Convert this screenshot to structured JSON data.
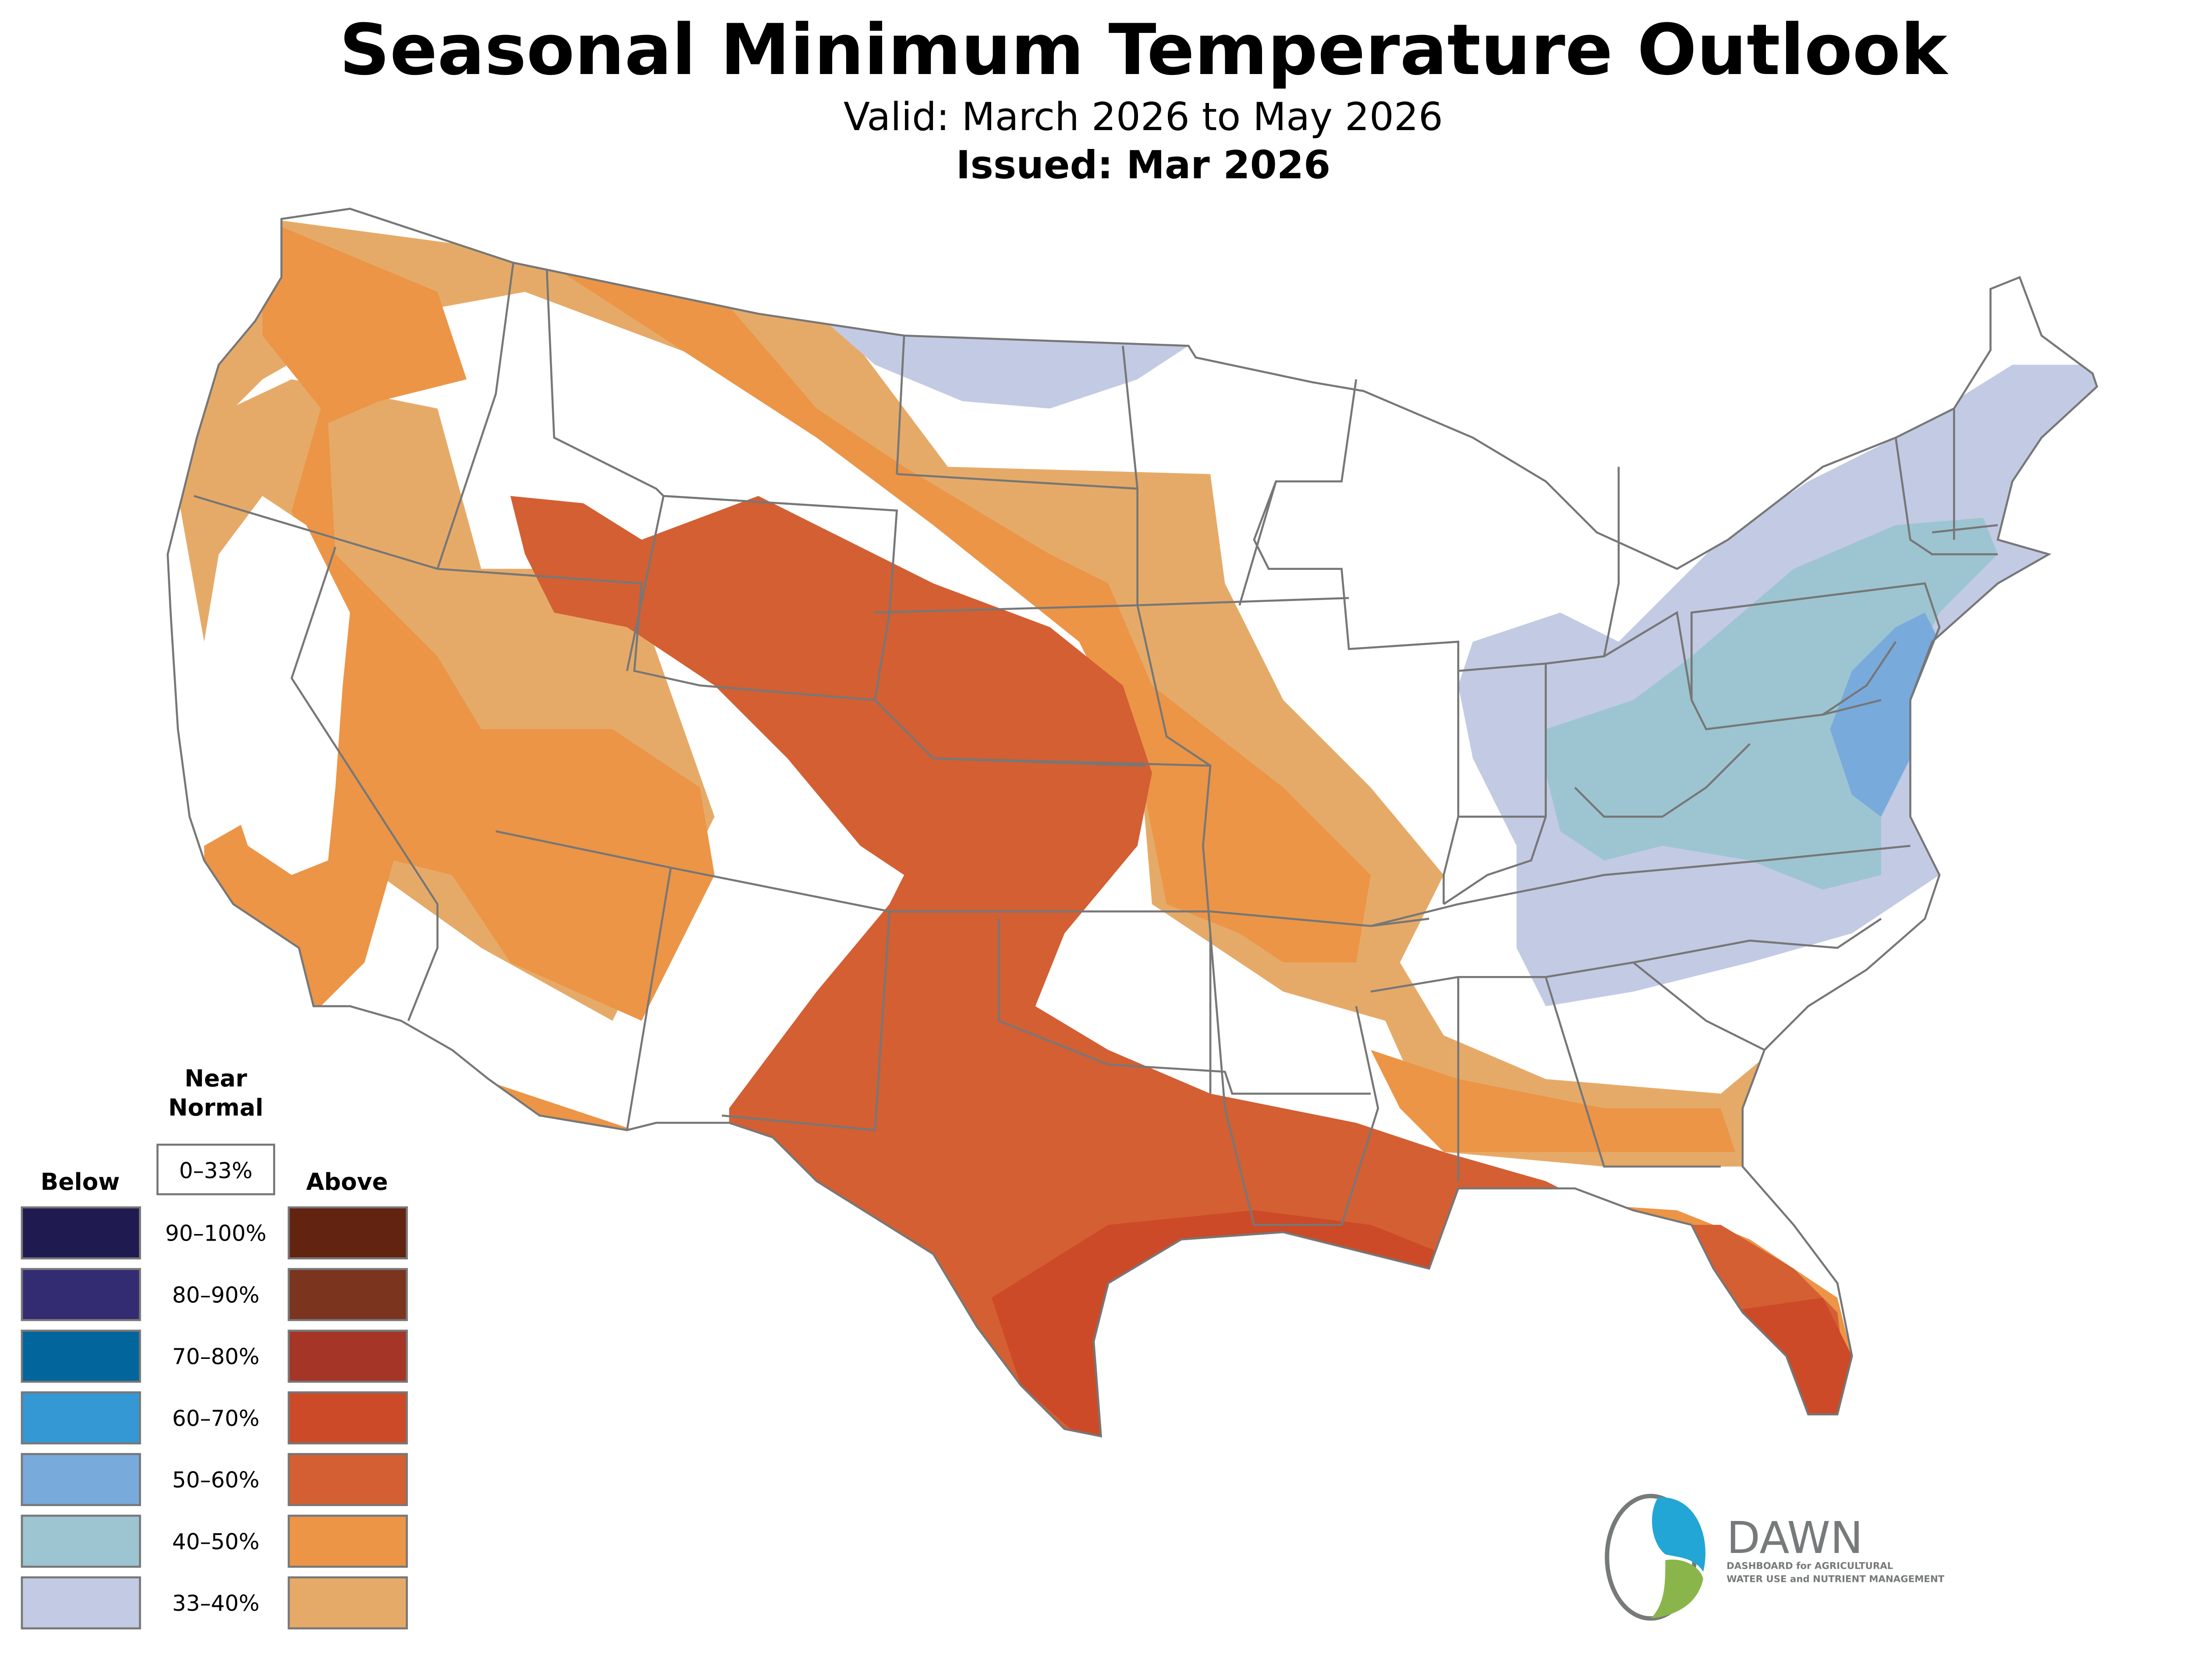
{
  "header": {
    "title": "Seasonal Minimum Temperature Outlook",
    "valid": "Valid: March 2026 to May 2026",
    "issued": "Issued: Mar 2026"
  },
  "legend": {
    "near_normal_title_1": "Near",
    "near_normal_title_2": "Normal",
    "near_normal_range": "0–33%",
    "below_label": "Below",
    "above_label": "Above",
    "rows": [
      {
        "range": "90–100%",
        "below_color": "#1f1a4f",
        "above_color": "#622311"
      },
      {
        "range": "80–90%",
        "below_color": "#332c72",
        "above_color": "#7b341e"
      },
      {
        "range": "70–80%",
        "below_color": "#02669c",
        "above_color": "#a53526"
      },
      {
        "range": "60–70%",
        "below_color": "#3498d4",
        "above_color": "#cc4a27"
      },
      {
        "range": "50–60%",
        "below_color": "#78aadc",
        "above_color": "#d35f33"
      },
      {
        "range": "40–50%",
        "below_color": "#9cc5d1",
        "above_color": "#ec9547"
      },
      {
        "range": "33–40%",
        "below_color": "#c3cae4",
        "above_color": "#e6aa68"
      }
    ]
  },
  "map": {
    "border_color": "#777777",
    "regions": [
      {
        "category": "Above 33–40%",
        "color": "#e6aa68"
      },
      {
        "category": "Above 40–50%",
        "color": "#ec9547"
      },
      {
        "category": "Above 50–60%",
        "color": "#d35f33"
      },
      {
        "category": "Above 60–70%",
        "color": "#cc4a27"
      },
      {
        "category": "Below 33–40%",
        "color": "#c3cae4"
      },
      {
        "category": "Below 40–50%",
        "color": "#9cc5d1"
      },
      {
        "category": "Below 50–60%",
        "color": "#78aadc"
      }
    ]
  },
  "logo": {
    "name": "DAWN",
    "tagline_1": "DASHBOARD for AGRICULTURAL",
    "tagline_2": "WATER USE and NUTRIENT MANAGEMENT",
    "blue": "#22a6d5",
    "green": "#8ab54a",
    "gray": "#777a7a"
  }
}
